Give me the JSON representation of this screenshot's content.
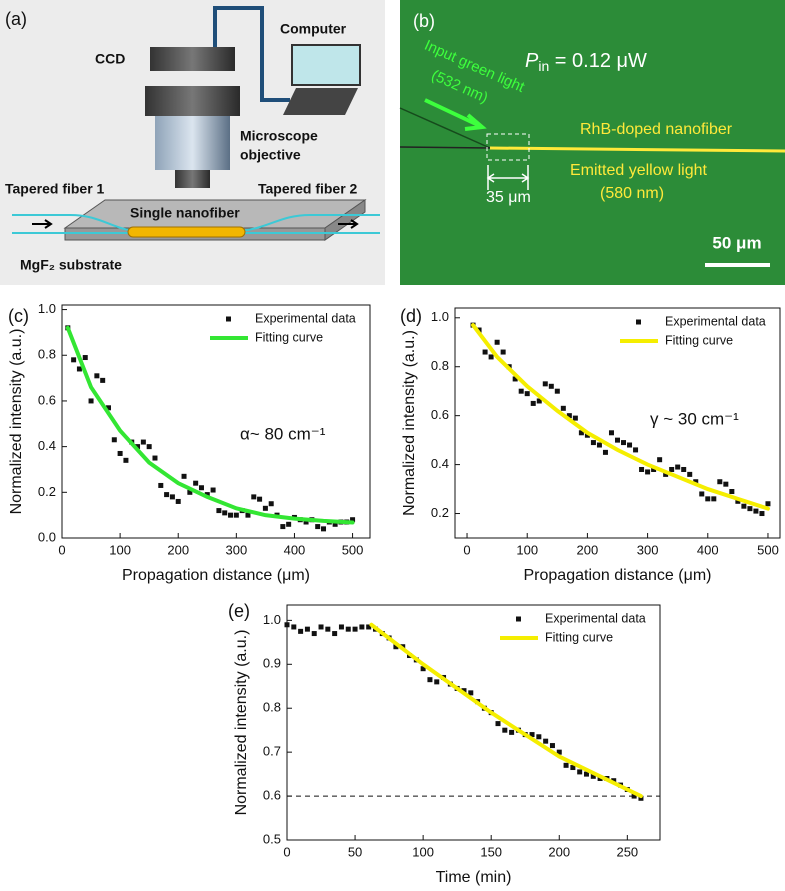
{
  "panel_a": {
    "label": "(a)",
    "ccd": "CCD",
    "computer": "Computer",
    "objective_1": "Microscope",
    "objective_2": "objective",
    "fiber_1": "Tapered fiber 1",
    "fiber_2": "Tapered fiber 2",
    "nanofiber": "Single nanofiber",
    "substrate": "MgF₂ substrate"
  },
  "panel_b": {
    "label": "(b)",
    "power_symbol": "P",
    "power_sub": "in",
    "power_rest": " = 0.12 μW",
    "input_1": "Input green light",
    "input_2": "(532 nm)",
    "nanofiber": "RhB-doped nanofiber",
    "emitted_1": "Emitted yellow light",
    "emitted_2": "(580 nm)",
    "length": "35 μm",
    "scale": "50 μm"
  },
  "chart_data": [
    {
      "type": "scatter",
      "panel_label": "(c)",
      "x_label": "Propagation distance (μm)",
      "y_label": "Normalized intensity (a.u.)",
      "annotation": "α~ 80 cm⁻¹",
      "legend": "upper right",
      "xlim": [
        0,
        530
      ],
      "ylim": [
        0,
        1.02
      ],
      "xticks": [
        0,
        100,
        200,
        300,
        400,
        500
      ],
      "yticks": [
        {
          "value": 0,
          "label": "0.0"
        },
        0.2,
        0.4,
        0.6,
        0.8,
        {
          "value": 1,
          "label": "1.0"
        }
      ],
      "series": [
        {
          "name": "Experimental data",
          "style": "marker",
          "color": "#111111",
          "x": [
            10,
            20,
            30,
            40,
            50,
            60,
            70,
            80,
            90,
            100,
            110,
            120,
            130,
            140,
            150,
            160,
            170,
            180,
            190,
            200,
            210,
            220,
            230,
            240,
            250,
            260,
            270,
            280,
            290,
            300,
            310,
            320,
            330,
            340,
            350,
            360,
            370,
            380,
            390,
            400,
            410,
            420,
            430,
            440,
            450,
            460,
            470,
            480,
            490,
            500
          ],
          "values": [
            0.92,
            0.78,
            0.74,
            0.79,
            0.6,
            0.71,
            0.69,
            0.57,
            0.43,
            0.37,
            0.34,
            0.42,
            0.4,
            0.42,
            0.4,
            0.35,
            0.23,
            0.19,
            0.18,
            0.16,
            0.27,
            0.2,
            0.24,
            0.22,
            0.19,
            0.21,
            0.12,
            0.11,
            0.1,
            0.1,
            0.12,
            0.1,
            0.18,
            0.17,
            0.13,
            0.15,
            0.1,
            0.05,
            0.06,
            0.09,
            0.08,
            0.07,
            0.08,
            0.05,
            0.04,
            0.07,
            0.06,
            0.07,
            0.07,
            0.08
          ]
        },
        {
          "name": "Fitting curve",
          "style": "line",
          "color": "#33e633",
          "x": [
            10,
            50,
            100,
            150,
            200,
            250,
            300,
            350,
            400,
            450,
            500
          ],
          "values": [
            0.92,
            0.66,
            0.47,
            0.33,
            0.24,
            0.18,
            0.13,
            0.1,
            0.085,
            0.075,
            0.068
          ]
        }
      ]
    },
    {
      "type": "scatter",
      "panel_label": "(d)",
      "x_label": "Propagation distance (μm)",
      "y_label": "Normalized intensity (a.u.)",
      "annotation": "γ ~ 30 cm⁻¹",
      "legend": "upper right",
      "xlim": [
        -20,
        520
      ],
      "ylim": [
        0.1,
        1.04
      ],
      "xticks": [
        0,
        100,
        200,
        300,
        400,
        500
      ],
      "yticks": [
        0.2,
        0.4,
        0.6,
        0.8,
        {
          "value": 1,
          "label": "1.0"
        }
      ],
      "series": [
        {
          "name": "Experimental data",
          "style": "marker",
          "color": "#111111",
          "x": [
            10,
            20,
            30,
            40,
            50,
            60,
            70,
            80,
            90,
            100,
            110,
            120,
            130,
            140,
            150,
            160,
            170,
            180,
            190,
            200,
            210,
            220,
            230,
            240,
            250,
            260,
            270,
            280,
            290,
            300,
            310,
            320,
            330,
            340,
            350,
            360,
            370,
            380,
            390,
            400,
            410,
            420,
            430,
            440,
            450,
            460,
            470,
            480,
            490,
            500
          ],
          "values": [
            0.97,
            0.95,
            0.86,
            0.84,
            0.9,
            0.86,
            0.8,
            0.75,
            0.7,
            0.69,
            0.65,
            0.66,
            0.73,
            0.72,
            0.7,
            0.63,
            0.6,
            0.59,
            0.53,
            0.52,
            0.49,
            0.48,
            0.45,
            0.53,
            0.5,
            0.49,
            0.48,
            0.46,
            0.38,
            0.37,
            0.38,
            0.42,
            0.36,
            0.38,
            0.39,
            0.38,
            0.36,
            0.33,
            0.28,
            0.26,
            0.26,
            0.33,
            0.32,
            0.29,
            0.25,
            0.23,
            0.22,
            0.21,
            0.2,
            0.24
          ]
        },
        {
          "name": "Fitting curve",
          "style": "line",
          "color": "#f5ee00",
          "x": [
            10,
            50,
            100,
            150,
            200,
            250,
            300,
            350,
            400,
            450,
            500
          ],
          "values": [
            0.97,
            0.84,
            0.72,
            0.62,
            0.53,
            0.46,
            0.4,
            0.35,
            0.3,
            0.26,
            0.22
          ]
        }
      ]
    },
    {
      "type": "scatter",
      "panel_label": "(e)",
      "x_label": "Time (min)",
      "y_label": "Normalized intensity (a.u.)",
      "legend": "upper right",
      "hline": 0.6,
      "xlim": [
        0,
        274
      ],
      "ylim": [
        0.5,
        1.035
      ],
      "xticks": [
        0,
        50,
        100,
        150,
        200,
        250
      ],
      "yticks": [
        0.5,
        0.6,
        0.7,
        0.8,
        0.9,
        {
          "value": 1,
          "label": "1.0"
        }
      ],
      "series": [
        {
          "name": "Experimental data",
          "style": "marker",
          "color": "#111111",
          "x": [
            0,
            5,
            10,
            15,
            20,
            25,
            30,
            35,
            40,
            45,
            50,
            55,
            60,
            65,
            70,
            75,
            80,
            85,
            90,
            95,
            100,
            105,
            110,
            115,
            120,
            125,
            130,
            135,
            140,
            145,
            150,
            155,
            160,
            165,
            170,
            175,
            180,
            185,
            190,
            195,
            200,
            205,
            210,
            215,
            220,
            225,
            230,
            235,
            240,
            245,
            250,
            255,
            260
          ],
          "values": [
            0.99,
            0.985,
            0.975,
            0.98,
            0.97,
            0.985,
            0.98,
            0.97,
            0.985,
            0.98,
            0.98,
            0.985,
            0.985,
            0.98,
            0.97,
            0.96,
            0.94,
            0.94,
            0.92,
            0.91,
            0.89,
            0.865,
            0.86,
            0.87,
            0.855,
            0.845,
            0.84,
            0.835,
            0.815,
            0.8,
            0.79,
            0.765,
            0.75,
            0.745,
            0.75,
            0.74,
            0.74,
            0.735,
            0.725,
            0.715,
            0.7,
            0.67,
            0.665,
            0.655,
            0.65,
            0.645,
            0.64,
            0.64,
            0.635,
            0.625,
            0.615,
            0.6,
            0.595
          ]
        },
        {
          "name": "Fitting curve",
          "style": "line",
          "color": "#f5ee00",
          "x": [
            62,
            100,
            150,
            200,
            260
          ],
          "values": [
            0.99,
            0.9,
            0.79,
            0.69,
            0.6
          ]
        }
      ]
    }
  ]
}
